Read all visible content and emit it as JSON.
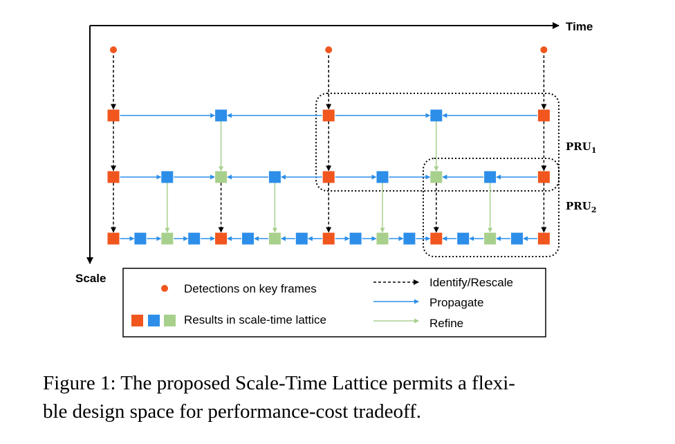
{
  "diagram": {
    "axes": {
      "x_label": "Time",
      "y_label": "Scale"
    },
    "pru_labels": [
      {
        "main": "PRU",
        "sub": "1"
      },
      {
        "main": "PRU",
        "sub": "2"
      }
    ],
    "colors": {
      "detection": "#f0561e",
      "orange": "#f0561e",
      "blue": "#2c8ee8",
      "green": "#a8d08d",
      "propagate": "#2c8ee8",
      "refine": "#a8d08d",
      "identify": "#000000"
    },
    "legend": {
      "detections": "Detections on key frames",
      "results": "Results in scale-time lattice",
      "identify": "Identify/Rescale",
      "propagate": "Propagate",
      "refine": "Refine"
    }
  },
  "caption": {
    "line1": "Figure 1: The proposed Scale-Time Lattice permits a flexi-",
    "line2": "ble design space for performance-cost tradeoff."
  }
}
